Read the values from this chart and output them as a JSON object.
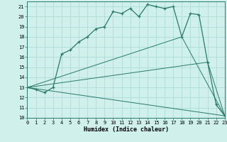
{
  "xlabel": "Humidex (Indice chaleur)",
  "xlim": [
    0,
    23
  ],
  "ylim": [
    10,
    21.5
  ],
  "yticks": [
    10,
    11,
    12,
    13,
    14,
    15,
    16,
    17,
    18,
    19,
    20,
    21
  ],
  "xticks": [
    0,
    1,
    2,
    3,
    4,
    5,
    6,
    7,
    8,
    9,
    10,
    11,
    12,
    13,
    14,
    15,
    16,
    17,
    18,
    19,
    20,
    21,
    22,
    23
  ],
  "bg_color": "#cff0eb",
  "line_color": "#2a7a6a",
  "grid_color": "#aaddd6",
  "main_curve": {
    "x": [
      0,
      1,
      2,
      3,
      4,
      5,
      6,
      7,
      8,
      9,
      10,
      11,
      12,
      13,
      14,
      15,
      16,
      17,
      18,
      19,
      20,
      21,
      22,
      23
    ],
    "y": [
      13.0,
      12.8,
      12.5,
      13.0,
      16.3,
      16.7,
      17.5,
      18.0,
      18.8,
      19.0,
      20.5,
      20.3,
      20.8,
      20.0,
      21.2,
      21.0,
      20.8,
      21.0,
      18.0,
      20.3,
      20.2,
      15.5,
      11.3,
      10.2
    ]
  },
  "fan_lines": [
    {
      "x": [
        0,
        18,
        23
      ],
      "y": [
        13.0,
        18.0,
        10.2
      ]
    },
    {
      "x": [
        0,
        21,
        23
      ],
      "y": [
        13.0,
        15.5,
        10.2
      ]
    },
    {
      "x": [
        0,
        23
      ],
      "y": [
        13.0,
        10.2
      ]
    }
  ]
}
